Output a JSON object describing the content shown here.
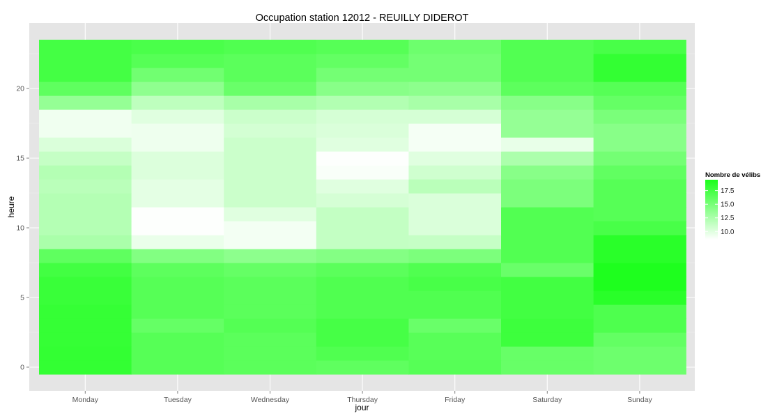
{
  "chart_data": {
    "type": "heatmap",
    "title": "Occupation station 12012 - REUILLY DIDEROT",
    "xlabel": "jour",
    "ylabel": "heure",
    "x_categories": [
      "Monday",
      "Tuesday",
      "Wednesday",
      "Thursday",
      "Friday",
      "Saturday",
      "Sunday"
    ],
    "y_categories": [
      0,
      1,
      2,
      3,
      4,
      5,
      6,
      7,
      8,
      9,
      10,
      11,
      12,
      13,
      14,
      15,
      16,
      17,
      18,
      19,
      20,
      21,
      22,
      23
    ],
    "y_ticks": [
      0,
      5,
      10,
      15,
      20
    ],
    "value_range": [
      8.5,
      19.5
    ],
    "legend": {
      "title": "Nombre de vélibs",
      "ticks": [
        17.5,
        15.0,
        12.5,
        10.0
      ],
      "color_low": "#ffffff",
      "color_high": "#1aff1a",
      "placement": "right"
    },
    "grid": true,
    "panel_background": "#e5e5e5",
    "values": [
      [
        18.3,
        16.6,
        16.4,
        16.2,
        16.6,
        15.8,
        15.5
      ],
      [
        18.3,
        16.6,
        16.4,
        16.9,
        16.5,
        15.8,
        15.5
      ],
      [
        18.2,
        16.6,
        16.4,
        17.4,
        16.5,
        17.8,
        16.0
      ],
      [
        18.2,
        15.9,
        16.7,
        17.4,
        15.7,
        17.8,
        17.0
      ],
      [
        18.2,
        16.6,
        16.4,
        16.9,
        16.9,
        17.6,
        17.0
      ],
      [
        18.0,
        16.6,
        16.4,
        16.9,
        16.9,
        17.6,
        18.8
      ],
      [
        18.0,
        16.6,
        16.4,
        16.9,
        17.3,
        17.6,
        19.3
      ],
      [
        17.6,
        16.3,
        15.9,
        16.4,
        16.9,
        15.7,
        19.3
      ],
      [
        16.2,
        14.5,
        14.0,
        14.4,
        14.8,
        16.8,
        18.8
      ],
      [
        12.6,
        9.5,
        9.1,
        11.4,
        11.3,
        16.8,
        18.8
      ],
      [
        12.1,
        8.6,
        9.1,
        11.4,
        10.3,
        16.8,
        17.3
      ],
      [
        12.1,
        8.6,
        10.0,
        11.4,
        10.3,
        16.8,
        16.6
      ],
      [
        12.1,
        9.8,
        11.0,
        10.5,
        10.3,
        14.8,
        16.6
      ],
      [
        11.8,
        9.8,
        11.0,
        10.0,
        11.8,
        14.8,
        16.6
      ],
      [
        12.1,
        10.2,
        11.0,
        8.8,
        10.8,
        14.2,
        16.1
      ],
      [
        11.3,
        10.2,
        11.0,
        8.6,
        10.0,
        12.5,
        15.2
      ],
      [
        10.3,
        9.3,
        11.0,
        10.0,
        9.0,
        9.6,
        14.2
      ],
      [
        9.2,
        9.3,
        10.6,
        10.3,
        9.0,
        13.6,
        14.2
      ],
      [
        9.2,
        10.0,
        11.0,
        10.5,
        10.5,
        13.6,
        14.9
      ],
      [
        13.6,
        11.6,
        12.7,
        12.2,
        12.7,
        14.2,
        15.9
      ],
      [
        16.2,
        13.9,
        15.7,
        14.2,
        14.0,
        16.3,
        16.6
      ],
      [
        17.5,
        15.3,
        16.4,
        15.2,
        15.2,
        16.8,
        18.3
      ],
      [
        17.5,
        16.6,
        16.4,
        16.0,
        15.2,
        16.8,
        18.3
      ],
      [
        17.5,
        17.2,
        16.9,
        16.6,
        15.5,
        16.8,
        17.3
      ]
    ]
  }
}
